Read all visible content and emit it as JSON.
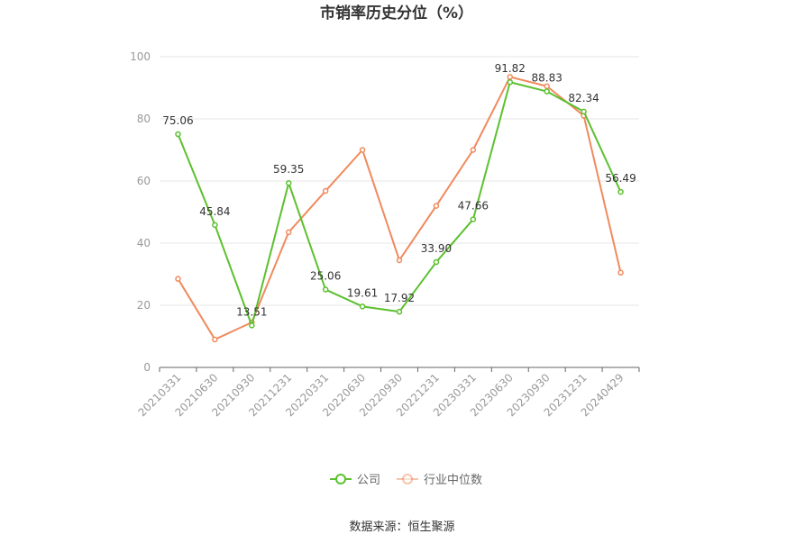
{
  "chart_data": {
    "type": "line",
    "title": "市销率历史分位（%）",
    "categories": [
      "20210331",
      "20210630",
      "20210930",
      "20211231",
      "20220331",
      "20220630",
      "20220930",
      "20221231",
      "20230331",
      "20230630",
      "20230930",
      "20231231",
      "20240429"
    ],
    "series": [
      {
        "name": "公司",
        "color": "#5cc02e",
        "values": [
          75.06,
          45.84,
          13.51,
          59.35,
          25.06,
          19.61,
          17.92,
          33.9,
          47.66,
          91.82,
          88.83,
          82.34,
          56.49
        ],
        "labels": [
          "75.06",
          "45.84",
          "13.51",
          "59.35",
          "25.06",
          "19.61",
          "17.92",
          "33.90",
          "47.66",
          "91.82",
          "88.83",
          "82.34",
          "56.49"
        ]
      },
      {
        "name": "行业中位数",
        "color": "#f08a5d",
        "values": [
          28.5,
          9.0,
          14.5,
          43.5,
          56.8,
          70.0,
          34.5,
          52.0,
          70.0,
          93.5,
          90.5,
          81.0,
          30.5
        ]
      }
    ],
    "ylim": [
      0,
      100
    ],
    "yticks": [
      "0",
      "20",
      "40",
      "60",
      "80",
      "100"
    ],
    "grid": true,
    "legend_position": "bottom"
  },
  "footer": {
    "source": "数据来源：恒生聚源"
  }
}
